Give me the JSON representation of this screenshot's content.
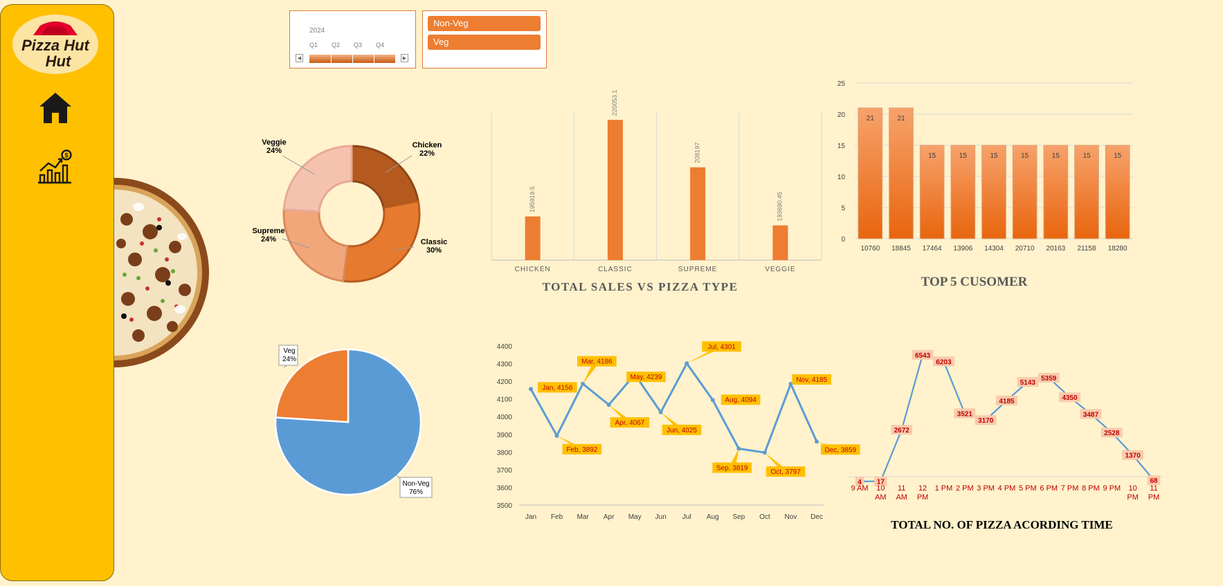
{
  "sidebar": {
    "brand": "Pizza Hut",
    "home_icon": "home-icon",
    "chart_icon": "growth-chart-icon"
  },
  "slicers": {
    "timeline": {
      "year": "2024",
      "quarters": [
        "Q1",
        "Q2",
        "Q3",
        "Q4"
      ]
    },
    "category": {
      "items": [
        "Non-Veg",
        "Veg"
      ]
    }
  },
  "colors": {
    "background": "#FFF2CC",
    "sidebar": "#FFC000",
    "accent": "#ED7D31",
    "line": "#5B9BD5"
  },
  "chart_data": [
    {
      "id": "category_donut",
      "type": "pie",
      "labels": [
        "Chicken",
        "Classic",
        "Supreme",
        "Veggie"
      ],
      "values": [
        22,
        30,
        24,
        24
      ],
      "data_labels": [
        "Chicken\n22%",
        "Classic\n30%",
        "Supreme\n24%",
        "Veggie\n24%"
      ],
      "colors": [
        "#B55A1E",
        "#E67A2E",
        "#F2A77B",
        "#F5C2B0"
      ]
    },
    {
      "id": "sales_by_type",
      "type": "bar",
      "title": "TOTAL SALES VS PIZZA TYPE",
      "categories": [
        "CHICKEN",
        "CLASSIC",
        "SUPREME",
        "VEGGIE"
      ],
      "values": [
        195919.5,
        220053.1,
        208197,
        193690.45
      ],
      "data_labels": [
        "195919.5",
        "220053.1",
        "208197",
        "193690.45"
      ],
      "ylim": [
        185000,
        222000
      ]
    },
    {
      "id": "top_customers",
      "type": "bar",
      "title": "TOP 5 CUSOMER",
      "categories": [
        "10760",
        "18845",
        "17464",
        "13906",
        "14304",
        "20710",
        "20163",
        "21158",
        "18280"
      ],
      "values": [
        21,
        21,
        15,
        15,
        15,
        15,
        15,
        15,
        15
      ],
      "y_ticks": [
        "0",
        "5",
        "10",
        "15",
        "20",
        "25"
      ],
      "ylim": [
        0,
        25
      ]
    },
    {
      "id": "veg_split",
      "type": "pie",
      "labels": [
        "Non-Veg",
        "Veg"
      ],
      "values": [
        76,
        24
      ],
      "data_labels": [
        "Non-Veg\n76%",
        "Veg\n24%"
      ],
      "colors": [
        "#5B9BD5",
        "#ED7D31"
      ]
    },
    {
      "id": "monthly_trend",
      "type": "line",
      "categories": [
        "Jan",
        "Feb",
        "Mar",
        "Apr",
        "May",
        "Jun",
        "Jul",
        "Aug",
        "Sep",
        "Oct",
        "Nov",
        "Dec"
      ],
      "values": [
        4156,
        3892,
        4186,
        4067,
        4239,
        4025,
        4301,
        4094,
        3819,
        3797,
        4185,
        3859
      ],
      "data_labels": [
        "Jan, 4156",
        "Feb, 3892",
        "Mar, 4186",
        "Apr, 4067",
        "May, 4239",
        "Jun, 4025",
        "Jul, 4301",
        "Aug, 4094",
        "Sep, 3819",
        "Oct, 3797",
        "Nov, 4185",
        "Dec, 3859"
      ],
      "y_ticks": [
        "3500",
        "3600",
        "3700",
        "3800",
        "3900",
        "4000",
        "4100",
        "4200",
        "4300",
        "4400"
      ],
      "ylim": [
        3500,
        4400
      ]
    },
    {
      "id": "hourly_orders",
      "type": "line",
      "title": "TOTAL NO. OF PIZZA ACORDING TIME",
      "categories": [
        "9 AM",
        "10 AM",
        "11 AM",
        "12 PM",
        "1 PM",
        "2 PM",
        "3 PM",
        "4 PM",
        "5 PM",
        "6 PM",
        "7 PM",
        "8 PM",
        "9 PM",
        "10 PM",
        "11 PM"
      ],
      "values": [
        4,
        17,
        2672,
        6543,
        6203,
        3521,
        3170,
        4185,
        5143,
        5359,
        4350,
        3487,
        2528,
        1370,
        68
      ],
      "ylim": [
        0,
        7000
      ]
    }
  ]
}
